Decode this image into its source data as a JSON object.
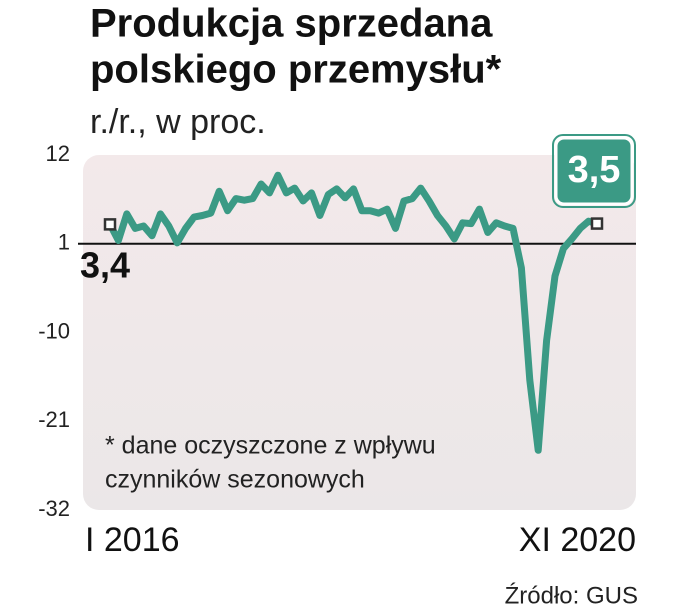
{
  "chart_data": {
    "type": "line",
    "title": [
      "Produkcja sprzedana",
      "polskiego przemysłu*"
    ],
    "subtitle": "r./r., w proc.",
    "annotation": [
      "* dane oczyszczone z wpływu",
      "czynników sezonowych"
    ],
    "source": "Źródło: GUS",
    "categories": [
      "I 2016",
      null,
      null,
      null,
      null,
      null,
      null,
      null,
      null,
      null,
      null,
      null,
      null,
      null,
      null,
      null,
      null,
      null,
      null,
      null,
      null,
      null,
      null,
      null,
      null,
      null,
      null,
      null,
      null,
      null,
      null,
      null,
      null,
      null,
      null,
      null,
      null,
      null,
      null,
      null,
      null,
      null,
      null,
      null,
      null,
      null,
      null,
      null,
      null,
      null,
      null,
      null,
      null,
      null,
      null,
      null,
      null,
      null,
      "XI 2020"
    ],
    "series": [
      {
        "name": "Produkcja sprzedana",
        "color": "#3b9a85",
        "values": [
          3.4,
          1.4,
          4.7,
          2.9,
          3.2,
          2.0,
          4.7,
          3.2,
          1.1,
          2.9,
          4.3,
          4.5,
          4.8,
          7.5,
          5.1,
          6.6,
          6.4,
          6.6,
          8.4,
          7.3,
          9.5,
          7.3,
          7.9,
          6.3,
          7.3,
          4.5,
          7.1,
          7.8,
          6.7,
          7.8,
          5.1,
          5.1,
          4.8,
          5.3,
          2.9,
          6.3,
          6.6,
          7.9,
          6.3,
          4.5,
          3.2,
          1.6,
          3.6,
          3.5,
          5.3,
          2.4,
          3.6,
          3.2,
          2.9,
          -2.0,
          -15.9,
          -24.6,
          -11.0,
          -3.0,
          0.4,
          1.6,
          2.9,
          3.8,
          3.5
        ],
        "value_labels": [
          "3,4",
          null,
          null,
          null,
          null,
          null,
          null,
          null,
          null,
          null,
          null,
          null,
          null,
          null,
          null,
          null,
          null,
          null,
          null,
          null,
          null,
          null,
          null,
          null,
          null,
          null,
          null,
          null,
          null,
          null,
          null,
          null,
          null,
          null,
          null,
          null,
          null,
          null,
          null,
          null,
          null,
          null,
          null,
          null,
          null,
          null,
          null,
          null,
          null,
          null,
          null,
          null,
          null,
          null,
          null,
          null,
          null,
          null,
          "3,5"
        ]
      }
    ],
    "ylim": [
      -32,
      12
    ],
    "yticks": [
      12,
      1,
      -10,
      -21,
      -32
    ],
    "hline": 1,
    "grid": false
  }
}
